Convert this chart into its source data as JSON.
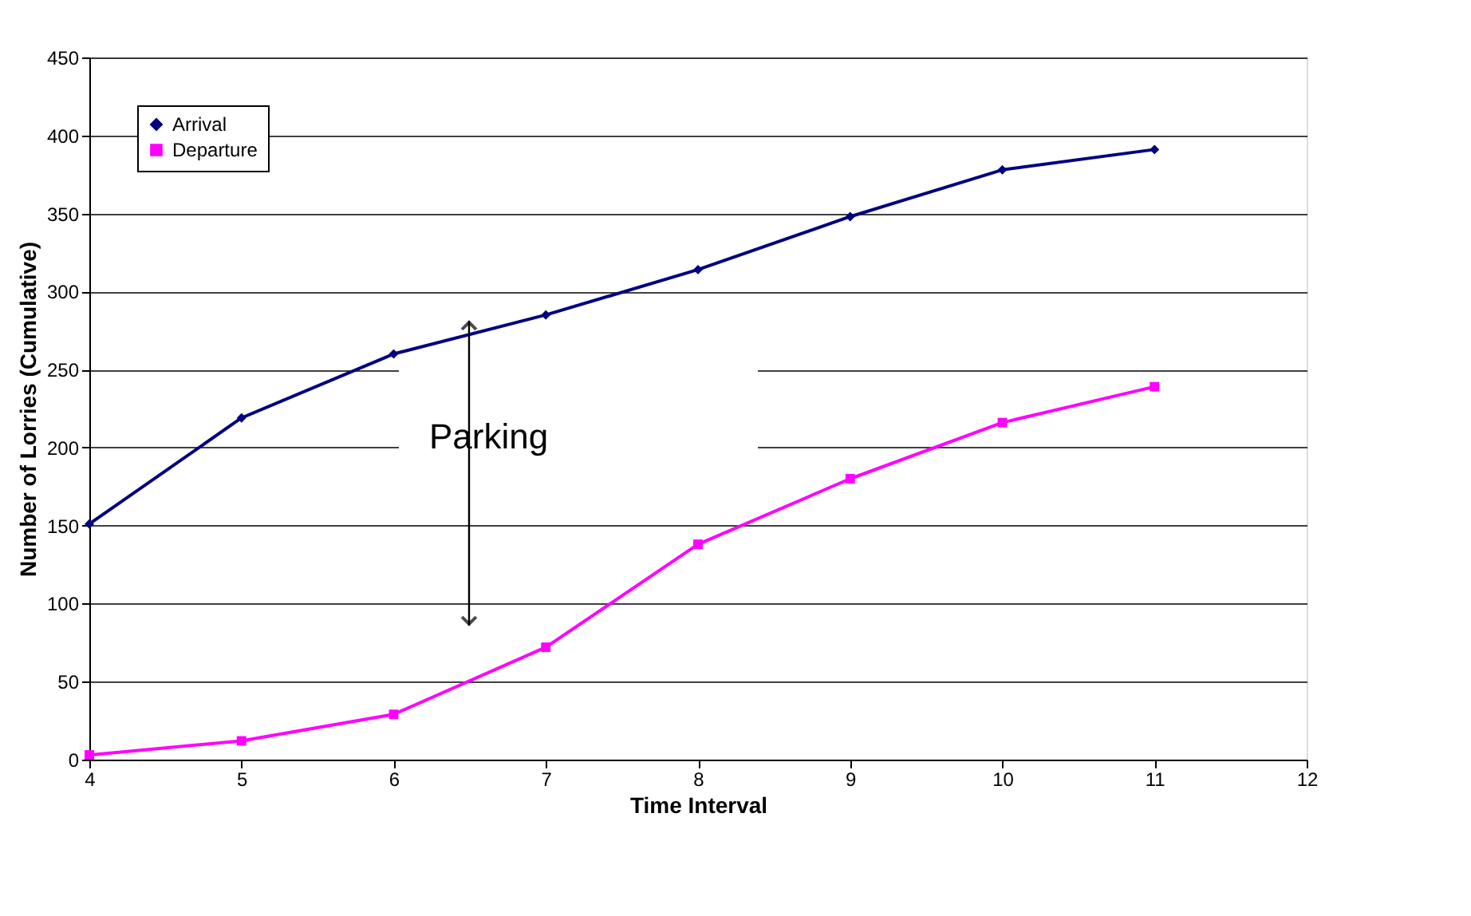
{
  "chart_data": {
    "type": "line",
    "xlabel": "Time Interval",
    "ylabel": "Number of Lorries (Cumulative)",
    "x": [
      4,
      5,
      6,
      7,
      8,
      9,
      10,
      11
    ],
    "series": [
      {
        "name": "Arrival",
        "color": "#000080",
        "marker": "diamond",
        "values": [
          151,
          219,
          260,
          285,
          314,
          348,
          378,
          391
        ]
      },
      {
        "name": "Departure",
        "color": "#ff00ff",
        "marker": "square",
        "values": [
          3,
          12,
          29,
          72,
          138,
          180,
          216,
          239
        ]
      }
    ],
    "xlim": [
      4,
      12
    ],
    "xticks": [
      {
        "value": 4,
        "label": "4"
      },
      {
        "value": 5,
        "label": "5"
      },
      {
        "value": 6,
        "label": "6"
      },
      {
        "value": 7,
        "label": "7"
      },
      {
        "value": 8,
        "label": "8"
      },
      {
        "value": 9,
        "label": "9"
      },
      {
        "value": 10,
        "label": "10"
      },
      {
        "value": 11,
        "label": "11"
      },
      {
        "value": 12,
        "label": "12"
      }
    ],
    "ylim": [
      0,
      450
    ],
    "yticks": [
      0,
      50,
      100,
      150,
      200,
      250,
      300,
      350,
      400,
      450
    ],
    "grid": "y",
    "legend": "top left",
    "annotations": [
      "Parking"
    ]
  }
}
